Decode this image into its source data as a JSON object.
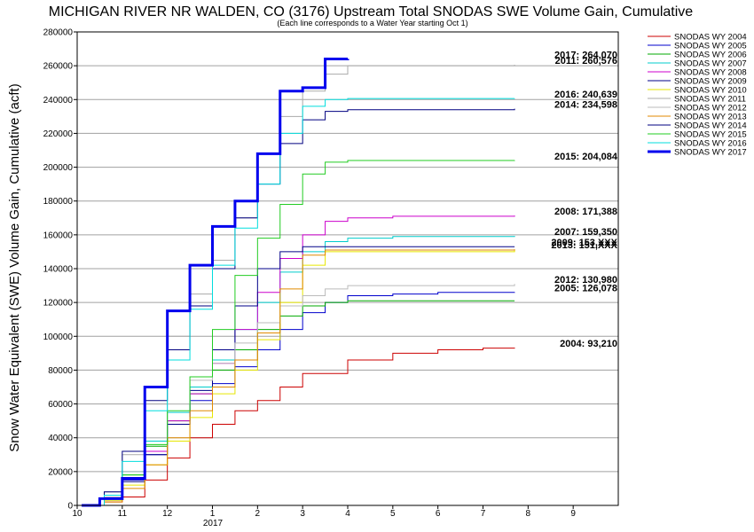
{
  "chart_data": {
    "type": "line",
    "title": "MICHIGAN RIVER NR WALDEN, CO (3176) Upstream Total SNODAS SWE Volume Gain, Cumulative",
    "subtitle": "(Each line corresponds to a Water Year starting Oct 1)",
    "ylabel": "Snow Water Equivalent (SWE) Volume Gain, Cumulative (acft)",
    "xlabel": "",
    "x_tick_labels": [
      "10",
      "11",
      "12",
      "1",
      "2",
      "3",
      "4",
      "5",
      "6",
      "7",
      "8",
      "9"
    ],
    "x_year_label": "2017",
    "ylim": [
      0,
      280000
    ],
    "y_ticks": [
      0,
      20000,
      40000,
      60000,
      80000,
      100000,
      120000,
      140000,
      160000,
      180000,
      200000,
      220000,
      240000,
      260000,
      280000
    ],
    "grid": "horizontal",
    "legend_position": "right",
    "series": [
      {
        "name": "SNODAS WY 2004",
        "color": "#cc0000",
        "end_label": "2004: 93,210",
        "x": [
          0.1,
          0.6,
          1.0,
          1.5,
          2.0,
          2.5,
          3.0,
          3.5,
          4.0,
          4.5,
          5.0,
          6.0,
          7.0,
          8.0,
          9.0,
          9.7
        ],
        "y": [
          0,
          2000,
          5000,
          15000,
          28000,
          40000,
          48000,
          56000,
          62000,
          70000,
          78000,
          86000,
          90000,
          92000,
          93000,
          93210
        ]
      },
      {
        "name": "SNODAS WY 2005",
        "color": "#0000cc",
        "end_label": "2005: 126,078",
        "x": [
          0.1,
          0.6,
          1.0,
          1.5,
          2.0,
          2.5,
          3.0,
          3.5,
          4.0,
          4.5,
          5.0,
          5.5,
          6.0,
          7.0,
          8.0,
          9.0,
          9.7
        ],
        "y": [
          0,
          4000,
          15000,
          30000,
          48000,
          62000,
          72000,
          82000,
          92000,
          104000,
          114000,
          120000,
          124000,
          125000,
          126000,
          126000,
          126078
        ]
      },
      {
        "name": "SNODAS WY 2006",
        "color": "#00aa00",
        "end_label": "",
        "x": [
          0.1,
          0.6,
          1.0,
          1.5,
          2.0,
          2.5,
          3.0,
          3.5,
          4.0,
          4.5,
          5.0,
          5.5,
          6.0,
          9.7
        ],
        "y": [
          0,
          5000,
          18000,
          35000,
          50000,
          66000,
          80000,
          92000,
          104000,
          112000,
          118000,
          120000,
          121000,
          121000
        ]
      },
      {
        "name": "SNODAS WY 2007",
        "color": "#00cccc",
        "end_label": "2007: 159,350",
        "x": [
          0.1,
          0.6,
          1.0,
          1.5,
          2.0,
          2.5,
          3.0,
          3.5,
          4.0,
          4.5,
          5.0,
          5.5,
          6.0,
          7.0,
          9.7
        ],
        "y": [
          0,
          6000,
          20000,
          38000,
          55000,
          70000,
          86000,
          104000,
          120000,
          138000,
          150000,
          156000,
          158000,
          159000,
          159350
        ]
      },
      {
        "name": "SNODAS WY 2008",
        "color": "#cc00cc",
        "end_label": "2008: 171,388",
        "x": [
          0.1,
          0.6,
          1.0,
          1.5,
          2.0,
          2.5,
          3.0,
          3.5,
          4.0,
          4.5,
          5.0,
          5.5,
          6.0,
          7.0,
          9.7
        ],
        "y": [
          0,
          5000,
          16000,
          32000,
          50000,
          66000,
          84000,
          104000,
          126000,
          146000,
          160000,
          168000,
          170000,
          171000,
          171388
        ]
      },
      {
        "name": "SNODAS WY 2009",
        "color": "#000088",
        "end_label": "2009: 153,XXX",
        "x": [
          0.1,
          0.6,
          1.0,
          1.5,
          2.0,
          2.5,
          3.0,
          3.5,
          4.0,
          4.5,
          5.0,
          9.7
        ],
        "y": [
          0,
          4000,
          14000,
          30000,
          48000,
          68000,
          92000,
          118000,
          140000,
          150000,
          153000,
          153000
        ]
      },
      {
        "name": "SNODAS WY 2010",
        "color": "#e6e600",
        "end_label": "",
        "x": [
          0.1,
          0.6,
          1.0,
          1.5,
          2.0,
          2.5,
          3.0,
          3.5,
          4.0,
          4.5,
          5.0,
          5.5,
          9.7
        ],
        "y": [
          0,
          3000,
          12000,
          24000,
          38000,
          52000,
          66000,
          80000,
          98000,
          120000,
          142000,
          150000,
          151000
        ]
      },
      {
        "name": "SNODAS WY 2011",
        "color": "#aaaaaa",
        "end_label": "2011: 260,576",
        "x": [
          0.1,
          0.6,
          1.0,
          1.5,
          2.0,
          2.5,
          3.0,
          3.5,
          4.0,
          4.5,
          5.0,
          5.5,
          6.0,
          9.7
        ],
        "y": [
          0,
          8000,
          30000,
          60000,
          100000,
          125000,
          145000,
          170000,
          200000,
          230000,
          245000,
          255000,
          260000,
          260576
        ]
      },
      {
        "name": "SNODAS WY 2012",
        "color": "#bbbbbb",
        "end_label": "2012: 130,980",
        "x": [
          0.1,
          0.6,
          1.0,
          1.5,
          2.0,
          2.5,
          3.0,
          3.5,
          4.0,
          4.5,
          5.0,
          5.5,
          6.0,
          9.7
        ],
        "y": [
          0,
          5000,
          20000,
          40000,
          60000,
          74000,
          84000,
          96000,
          108000,
          118000,
          124000,
          128000,
          130000,
          130980
        ]
      },
      {
        "name": "SNODAS WY 2013",
        "color": "#e08a00",
        "end_label": "2013: 151,XXX",
        "x": [
          0.1,
          0.6,
          1.0,
          1.5,
          2.0,
          2.5,
          3.0,
          3.5,
          4.0,
          4.5,
          5.0,
          5.5,
          9.7
        ],
        "y": [
          0,
          2000,
          10000,
          24000,
          40000,
          56000,
          70000,
          86000,
          102000,
          128000,
          148000,
          151000,
          151500
        ]
      },
      {
        "name": "SNODAS WY 2014",
        "color": "#000080",
        "end_label": "2014: 234,598",
        "x": [
          0.1,
          0.6,
          1.0,
          1.5,
          2.0,
          2.5,
          3.0,
          3.5,
          4.0,
          4.5,
          5.0,
          5.5,
          6.0,
          9.7
        ],
        "y": [
          0,
          8000,
          32000,
          62000,
          92000,
          118000,
          140000,
          170000,
          190000,
          214000,
          228000,
          233000,
          234000,
          234598
        ]
      },
      {
        "name": "SNODAS WY 2015",
        "color": "#22cc22",
        "end_label": "2015: 204,084",
        "x": [
          0.1,
          0.6,
          1.0,
          1.5,
          2.0,
          2.5,
          3.0,
          3.5,
          4.0,
          4.5,
          5.0,
          5.5,
          6.0,
          9.7
        ],
        "y": [
          0,
          4000,
          18000,
          36000,
          56000,
          76000,
          104000,
          136000,
          158000,
          178000,
          196000,
          203000,
          204000,
          204084
        ]
      },
      {
        "name": "SNODAS WY 2016",
        "color": "#00dddd",
        "end_label": "2016: 240,639",
        "x": [
          0.1,
          0.6,
          1.0,
          1.5,
          2.0,
          2.5,
          3.0,
          3.5,
          4.0,
          4.5,
          5.0,
          5.5,
          6.0,
          9.7
        ],
        "y": [
          0,
          6000,
          26000,
          56000,
          86000,
          116000,
          142000,
          164000,
          190000,
          220000,
          236000,
          240000,
          240600,
          240639
        ]
      },
      {
        "name": "SNODAS WY 2017",
        "color": "#0000ee",
        "end_label": "2017: 264,070",
        "x": [
          0.1,
          0.5,
          1.0,
          1.5,
          2.0,
          2.5,
          3.0,
          3.5,
          4.0,
          4.5,
          5.0,
          5.5,
          6.0
        ],
        "y": [
          0,
          4000,
          16000,
          70000,
          115000,
          142000,
          165000,
          180000,
          208000,
          245000,
          247000,
          264000,
          264070
        ]
      }
    ]
  }
}
